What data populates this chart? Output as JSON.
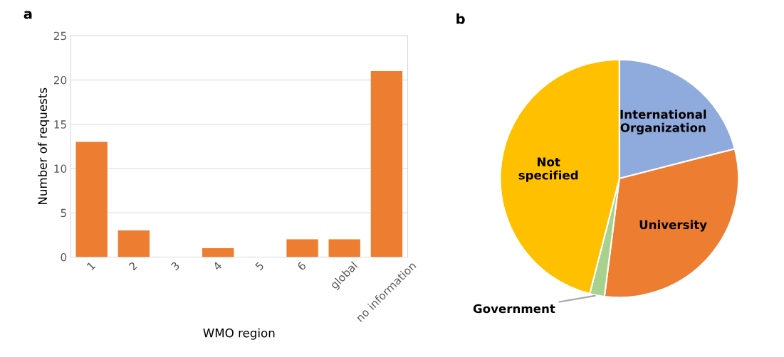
{
  "chart_data": [
    {
      "type": "bar",
      "title": "a",
      "xlabel": "WMO region",
      "ylabel": "Number of requests",
      "categories": [
        "1",
        "2",
        "3",
        "4",
        "5",
        "6",
        "global",
        "no information"
      ],
      "values": [
        13,
        3,
        0,
        1,
        0,
        2,
        2,
        21
      ],
      "color": "#ed7d31",
      "ylim": [
        0,
        25
      ],
      "yticks": [
        0,
        5,
        10,
        15,
        20,
        25
      ],
      "grid": "y"
    },
    {
      "type": "pie",
      "title": "b",
      "categories": [
        "International Organization",
        "University",
        "Government",
        "Not specified"
      ],
      "values": [
        21,
        31,
        2,
        46
      ],
      "colors": [
        "#8faadc",
        "#ed7d31",
        "#a9d18e",
        "#ffc000"
      ]
    }
  ]
}
